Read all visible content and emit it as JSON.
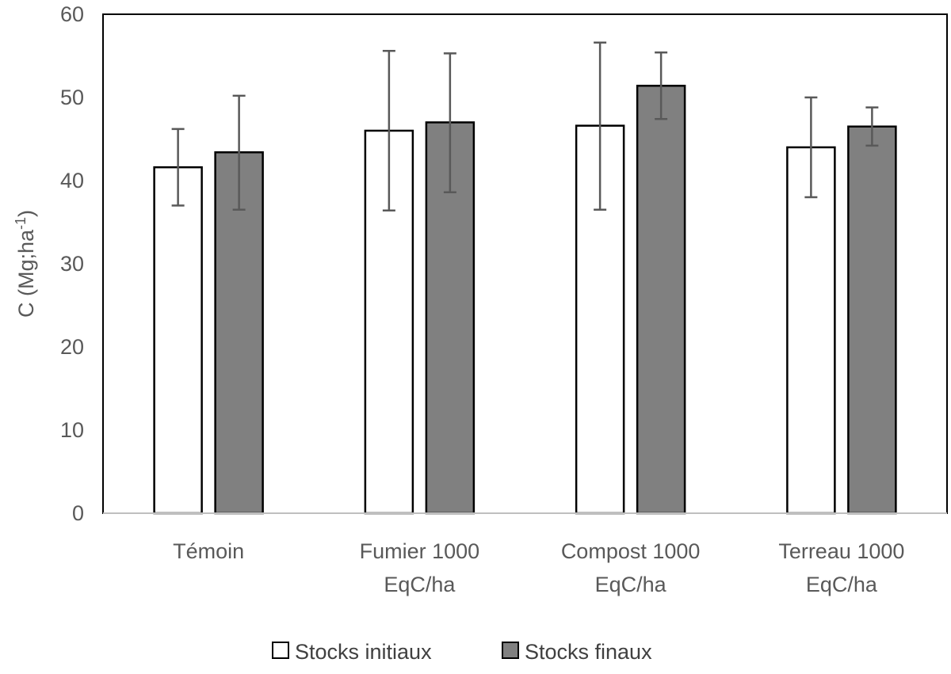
{
  "chart_data": {
    "type": "bar",
    "title": "",
    "xlabel": "",
    "ylabel": "C (Mg;ha",
    "ylabel_sup": "-1",
    "ylabel_close": ")",
    "ylim": [
      0,
      60
    ],
    "yticks": [
      0,
      10,
      20,
      30,
      40,
      50,
      60
    ],
    "grid": false,
    "legend_position": "bottom",
    "categories": [
      [
        "Témoin"
      ],
      [
        "Fumier  1000",
        "EqC/ha"
      ],
      [
        "Compost 1000",
        "EqC/ha"
      ],
      [
        "Terreau 1000",
        "EqC/ha"
      ]
    ],
    "series": [
      {
        "name": "Stocks initiaux",
        "color": "#ffffff",
        "values": [
          41.6,
          46.0,
          46.6,
          44.0
        ],
        "error_low": [
          37.0,
          36.4,
          36.5,
          38.0
        ],
        "error_high": [
          46.2,
          55.6,
          56.6,
          50.0
        ]
      },
      {
        "name": "Stocks finaux",
        "color": "#808080",
        "values": [
          43.4,
          47.0,
          51.4,
          46.5
        ],
        "error_low": [
          36.5,
          38.6,
          47.4,
          44.2
        ],
        "error_high": [
          50.2,
          55.3,
          55.4,
          48.8
        ]
      }
    ]
  }
}
